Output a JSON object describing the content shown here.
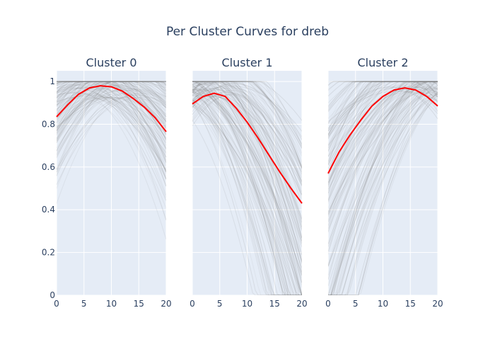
{
  "chart_data": {
    "type": "line",
    "title": "Per Cluster Curves for dreb",
    "colors": {
      "plot_bg": "#e5ecf6",
      "grid": "#ffffff",
      "mean_line": "#ff0000",
      "member_lines": "#808080",
      "text": "#2a3f5f"
    },
    "grid": true,
    "shared_y_axis": true,
    "x_ticks": [
      0,
      5,
      10,
      15,
      20
    ],
    "y_ticks": [
      0,
      0.2,
      0.4,
      0.6,
      0.8,
      1
    ],
    "y_tick_labels": [
      "0",
      "0.2",
      "0.4",
      "0.6",
      "0.8",
      "1"
    ],
    "xlim": [
      0,
      20
    ],
    "ylim": [
      0,
      1.05
    ],
    "note_member_lines": "many semi-transparent gray individual curves per cluster, clipped at 1",
    "panels": [
      {
        "title": "Cluster 0",
        "x_ticks": [
          "0",
          "5",
          "10",
          "15",
          "20"
        ],
        "mean": {
          "x": [
            0,
            2,
            4,
            6,
            8,
            10,
            12,
            14,
            16,
            18,
            20
          ],
          "y": [
            0.835,
            0.89,
            0.94,
            0.97,
            0.98,
            0.975,
            0.955,
            0.92,
            0.88,
            0.83,
            0.765
          ]
        },
        "member_peak_range": [
          2,
          16
        ],
        "member_peak_y_range": [
          0.92,
          1.12
        ],
        "member_curvature_range": [
          0.0006,
          0.0026
        ]
      },
      {
        "title": "Cluster 1",
        "x_ticks": [
          "0",
          "5",
          "10",
          "15",
          "20"
        ],
        "mean": {
          "x": [
            0,
            2,
            4,
            6,
            8,
            10,
            12,
            14,
            16,
            18,
            20
          ],
          "y": [
            0.895,
            0.93,
            0.945,
            0.93,
            0.875,
            0.81,
            0.735,
            0.655,
            0.575,
            0.5,
            0.43
          ]
        },
        "member_peak_range": [
          -6,
          8
        ],
        "member_peak_y_range": [
          0.92,
          1.1
        ],
        "member_curvature_range": [
          0.0012,
          0.0035
        ]
      },
      {
        "title": "Cluster 2",
        "x_ticks": [
          "0",
          "5",
          "10",
          "15",
          "20"
        ],
        "mean": {
          "x": [
            0,
            2,
            4,
            6,
            8,
            10,
            12,
            14,
            16,
            18,
            20
          ],
          "y": [
            0.57,
            0.67,
            0.75,
            0.82,
            0.885,
            0.93,
            0.96,
            0.97,
            0.96,
            0.93,
            0.885
          ]
        },
        "member_peak_range": [
          10,
          26
        ],
        "member_peak_y_range": [
          0.95,
          1.15
        ],
        "member_curvature_range": [
          0.0008,
          0.0028
        ]
      }
    ]
  }
}
